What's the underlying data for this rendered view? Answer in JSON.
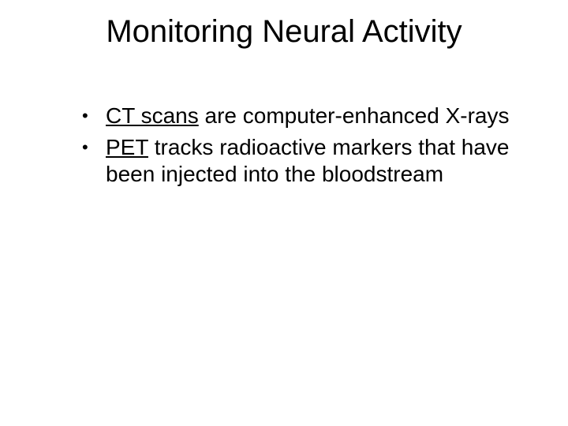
{
  "slide": {
    "title": "Monitoring Neural Activity",
    "title_fontsize": 40,
    "body_fontsize": 28,
    "background_color": "#ffffff",
    "text_color": "#000000",
    "bullets": [
      {
        "term": "CT scans",
        "rest": " are computer-enhanced X-rays"
      },
      {
        "term": "PET",
        "rest": " tracks radioactive markers that have been injected into the bloodstream"
      }
    ]
  }
}
